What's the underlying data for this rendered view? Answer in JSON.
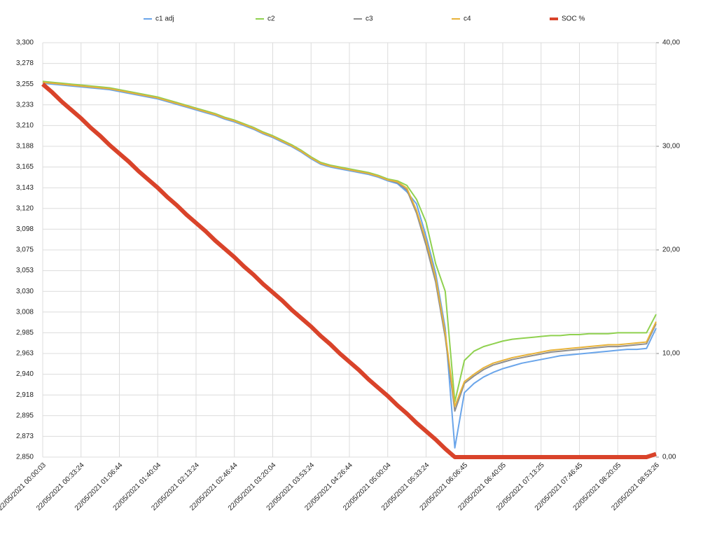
{
  "chart_data": {
    "type": "line",
    "categories": [
      "22/05/2021 00:00:03",
      null,
      null,
      null,
      "22/05/2021 00:33:24",
      null,
      null,
      null,
      "22/05/2021 01:06:44",
      null,
      null,
      null,
      "22/05/2021 01:40:04",
      null,
      null,
      null,
      "22/05/2021 02:13:24",
      null,
      null,
      null,
      "22/05/2021 02:46:44",
      null,
      null,
      null,
      "22/05/2021 03:20:04",
      null,
      null,
      null,
      "22/05/2021 03:53:24",
      null,
      null,
      null,
      "22/05/2021 04:26:44",
      null,
      null,
      null,
      "22/05/2021 05:00:04",
      null,
      null,
      null,
      "22/05/2021 05:33:24",
      null,
      null,
      null,
      "22/05/2021 06:06:45",
      null,
      null,
      null,
      "22/05/2021 06:40:05",
      null,
      null,
      null,
      "22/05/2021 07:13:25",
      null,
      null,
      null,
      "22/05/2021 07:46:45",
      null,
      null,
      null,
      "22/05/2021 08:20:05",
      null,
      null,
      null,
      "22/05/2021 08:53:26"
    ],
    "series": [
      {
        "name": "c1 adj",
        "color": "#6aa5ea",
        "values": [
          3.256,
          3.255,
          3.254,
          3.253,
          3.252,
          3.251,
          3.25,
          3.249,
          3.247,
          3.245,
          3.243,
          3.241,
          3.239,
          3.236,
          3.233,
          3.23,
          3.227,
          3.224,
          3.221,
          3.217,
          3.214,
          3.21,
          3.206,
          3.201,
          3.197,
          3.192,
          3.187,
          3.181,
          3.174,
          3.168,
          3.165,
          3.163,
          3.161,
          3.159,
          3.157,
          3.154,
          3.15,
          3.147,
          3.138,
          3.125,
          3.09,
          3.05,
          2.99,
          2.86,
          2.92,
          2.93,
          2.937,
          2.942,
          2.946,
          2.949,
          2.952,
          2.954,
          2.956,
          2.958,
          2.96,
          2.961,
          2.962,
          2.963,
          2.964,
          2.965,
          2.966,
          2.967,
          2.967,
          2.968,
          2.99
        ]
      },
      {
        "name": "c2",
        "color": "#8fd14f",
        "values": [
          3.258,
          3.257,
          3.256,
          3.255,
          3.254,
          3.253,
          3.252,
          3.251,
          3.249,
          3.247,
          3.245,
          3.243,
          3.241,
          3.238,
          3.235,
          3.232,
          3.229,
          3.226,
          3.223,
          3.219,
          3.216,
          3.212,
          3.208,
          3.203,
          3.199,
          3.194,
          3.189,
          3.183,
          3.176,
          3.17,
          3.167,
          3.165,
          3.163,
          3.161,
          3.159,
          3.156,
          3.152,
          3.15,
          3.145,
          3.13,
          3.105,
          3.06,
          3.03,
          2.91,
          2.955,
          2.965,
          2.97,
          2.973,
          2.976,
          2.978,
          2.979,
          2.98,
          2.981,
          2.982,
          2.982,
          2.983,
          2.983,
          2.984,
          2.984,
          2.984,
          2.985,
          2.985,
          2.985,
          2.985,
          3.005
        ]
      },
      {
        "name": "c3",
        "color": "#8e8e8e",
        "values": [
          3.257,
          3.256,
          3.255,
          3.254,
          3.253,
          3.252,
          3.251,
          3.25,
          3.248,
          3.246,
          3.244,
          3.242,
          3.24,
          3.237,
          3.234,
          3.231,
          3.228,
          3.225,
          3.222,
          3.218,
          3.215,
          3.211,
          3.207,
          3.202,
          3.198,
          3.193,
          3.188,
          3.182,
          3.175,
          3.169,
          3.166,
          3.164,
          3.162,
          3.16,
          3.158,
          3.155,
          3.151,
          3.148,
          3.14,
          3.115,
          3.08,
          3.04,
          2.98,
          2.9,
          2.93,
          2.938,
          2.945,
          2.95,
          2.953,
          2.956,
          2.958,
          2.96,
          2.962,
          2.964,
          2.965,
          2.966,
          2.967,
          2.968,
          2.969,
          2.97,
          2.97,
          2.971,
          2.972,
          2.973,
          2.995
        ]
      },
      {
        "name": "c4",
        "color": "#e8b33a",
        "values": [
          3.257,
          3.256,
          3.255,
          3.254,
          3.253,
          3.252,
          3.251,
          3.25,
          3.248,
          3.246,
          3.244,
          3.242,
          3.24,
          3.237,
          3.234,
          3.231,
          3.228,
          3.225,
          3.222,
          3.218,
          3.215,
          3.211,
          3.207,
          3.202,
          3.198,
          3.193,
          3.188,
          3.182,
          3.175,
          3.169,
          3.166,
          3.164,
          3.162,
          3.16,
          3.158,
          3.155,
          3.151,
          3.149,
          3.142,
          3.118,
          3.085,
          3.045,
          2.985,
          2.905,
          2.932,
          2.94,
          2.947,
          2.952,
          2.955,
          2.958,
          2.96,
          2.962,
          2.964,
          2.966,
          2.967,
          2.968,
          2.969,
          2.97,
          2.971,
          2.972,
          2.972,
          2.973,
          2.974,
          2.975,
          2.997
        ]
      },
      {
        "name": "SOC %",
        "color": "#d9432a",
        "axis": "y2",
        "values": [
          36,
          35.2,
          34.3,
          33.5,
          32.7,
          31.8,
          31.0,
          30.1,
          29.3,
          28.5,
          27.6,
          26.8,
          26.0,
          25.1,
          24.3,
          23.4,
          22.6,
          21.8,
          20.9,
          20.1,
          19.3,
          18.4,
          17.6,
          16.7,
          15.9,
          15.1,
          14.2,
          13.4,
          12.6,
          11.7,
          10.9,
          10.0,
          9.2,
          8.4,
          7.5,
          6.7,
          5.9,
          5.0,
          4.2,
          3.3,
          2.5,
          1.7,
          0.8,
          0,
          0,
          0,
          0,
          0,
          0,
          0,
          0,
          0,
          0,
          0,
          0,
          0,
          0,
          0,
          0,
          0,
          0,
          0,
          0,
          0,
          0.3
        ]
      }
    ],
    "ylim": [
      2.85,
      3.3
    ],
    "yticks": [
      {
        "value": 2.85,
        "label": "2,850"
      },
      {
        "value": 2.8725,
        "label": "2,873"
      },
      {
        "value": 2.895,
        "label": "2,895"
      },
      {
        "value": 2.9175,
        "label": "2,918"
      },
      {
        "value": 2.94,
        "label": "2,940"
      },
      {
        "value": 2.9625,
        "label": "2,963"
      },
      {
        "value": 2.985,
        "label": "2,985"
      },
      {
        "value": 3.0075,
        "label": "3,008"
      },
      {
        "value": 3.03,
        "label": "3,030"
      },
      {
        "value": 3.0525,
        "label": "3,053"
      },
      {
        "value": 3.075,
        "label": "3,075"
      },
      {
        "value": 3.0975,
        "label": "3,098"
      },
      {
        "value": 3.12,
        "label": "3,120"
      },
      {
        "value": 3.1425,
        "label": "3,143"
      },
      {
        "value": 3.165,
        "label": "3,165"
      },
      {
        "value": 3.1875,
        "label": "3,188"
      },
      {
        "value": 3.21,
        "label": "3,210"
      },
      {
        "value": 3.2325,
        "label": "3,233"
      },
      {
        "value": 3.255,
        "label": "3,255"
      },
      {
        "value": 3.2775,
        "label": "3,278"
      },
      {
        "value": 3.3,
        "label": "3,300"
      }
    ],
    "y2lim": [
      0,
      40
    ],
    "y2ticks": [
      {
        "value": 0,
        "label": "0,00"
      },
      {
        "value": 10,
        "label": "10,00"
      },
      {
        "value": 20,
        "label": "20,00"
      },
      {
        "value": 30,
        "label": "30,00"
      },
      {
        "value": 40,
        "label": "40,00"
      }
    ],
    "grid": true,
    "legend": "top"
  }
}
